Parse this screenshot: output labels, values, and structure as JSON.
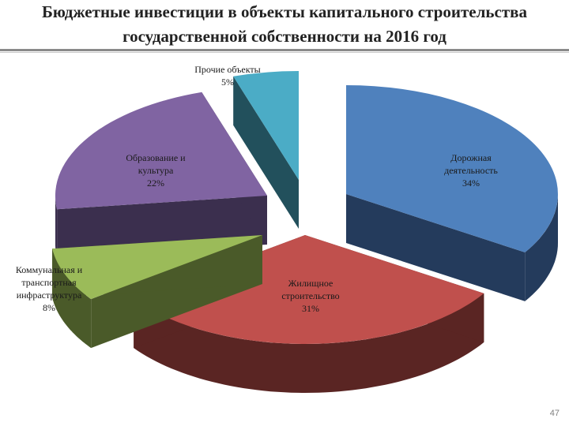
{
  "title_line1": "Бюджетные инвестиции в объекты капитального строительства",
  "title_line2": "государственной собственности на 2016 год",
  "page_number": "47",
  "chart_data": {
    "type": "pie",
    "style": "3d-exploded",
    "title": "Бюджетные инвестиции в объекты капитального строительства государственной собственности на 2016 год",
    "series": [
      {
        "values": [
          34,
          31,
          8,
          22,
          5
        ]
      }
    ],
    "slices": [
      {
        "label_lines": [
          "Дорожная",
          "деятельность",
          "34%"
        ],
        "value": 34,
        "color": "#4f81bd",
        "side": "#243b5c"
      },
      {
        "label_lines": [
          "Жилищное",
          "строительство",
          "31%"
        ],
        "value": 31,
        "color": "#c0504d",
        "side": "#5a2523"
      },
      {
        "label_lines": [
          "Коммунальная и",
          "транспортная",
          "инфраструктура",
          "8%"
        ],
        "value": 8,
        "color": "#9bbb59",
        "side": "#4a5a29"
      },
      {
        "label_lines": [
          "Образование и",
          "культура",
          "22%"
        ],
        "value": 22,
        "color": "#8064a2",
        "side": "#3b2f4e"
      },
      {
        "label_lines": [
          "Прочие объекты",
          "5%"
        ],
        "value": 5,
        "color": "#4bacc6",
        "side": "#22505c"
      }
    ],
    "legend": "none"
  }
}
